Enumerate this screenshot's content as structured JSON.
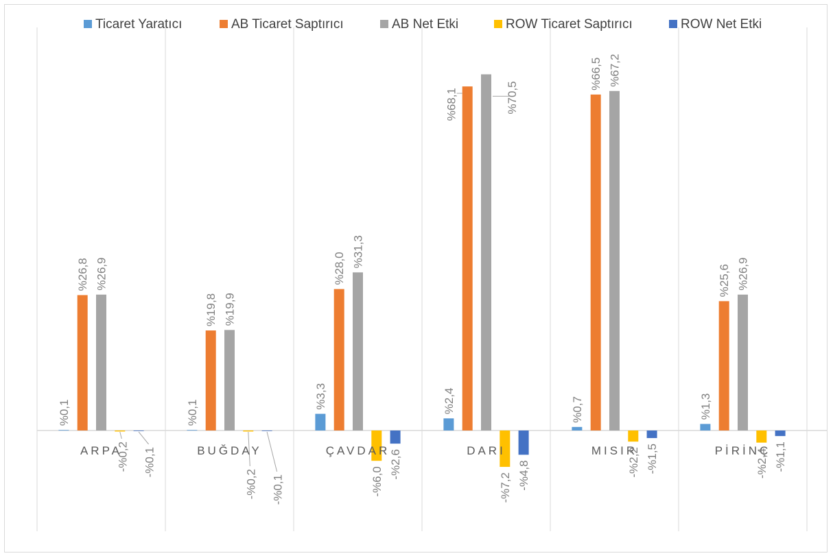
{
  "chart_data": {
    "type": "bar",
    "categories": [
      "ARPA",
      "BUĞDAY",
      "ÇAVDAR",
      "DARI",
      "MISIR",
      "PİRİNÇ"
    ],
    "series": [
      {
        "name": "Ticaret Yaratıcı",
        "color": "#5b9bd5",
        "values": [
          0.1,
          0.1,
          3.3,
          2.4,
          0.7,
          1.3
        ],
        "labels": [
          "%0,1",
          "%0,1",
          "%3,3",
          "%2,4",
          "%0,7",
          "%1,3"
        ]
      },
      {
        "name": "AB Ticaret Saptırıcı",
        "color": "#ed7d31",
        "values": [
          26.8,
          19.8,
          28.0,
          68.1,
          66.5,
          25.6
        ],
        "labels": [
          "%26,8",
          "%19,8",
          "%28,0",
          "%68,1",
          "%66,5",
          "%25,6"
        ]
      },
      {
        "name": "AB Net Etki",
        "color": "#a5a5a5",
        "values": [
          26.9,
          19.9,
          31.3,
          70.5,
          67.2,
          26.9
        ],
        "labels": [
          "%26,9",
          "%19,9",
          "%31,3",
          "%70,5",
          "%67,2",
          "%26,9"
        ]
      },
      {
        "name": "ROW Ticaret Saptırıcı",
        "color": "#ffc000",
        "values": [
          -0.2,
          -0.2,
          -6.0,
          -7.2,
          -2.2,
          -2.4
        ],
        "labels": [
          "-%0,2",
          "-%0,2",
          "-%6,0",
          "-%7,2",
          "-%2,2",
          "-%2,4"
        ]
      },
      {
        "name": "ROW Net Etki",
        "color": "#4472c4",
        "values": [
          -0.1,
          -0.1,
          -2.6,
          -4.8,
          -1.5,
          -1.1
        ],
        "labels": [
          "-%0,1",
          "-%0,1",
          "-%2,6",
          "-%4,8",
          "-%1,5",
          "-%1,1"
        ]
      }
    ],
    "ylim": [
      -20,
      74
    ],
    "grid": false,
    "legend_position": "top",
    "title": "",
    "xlabel": "",
    "ylabel": ""
  }
}
